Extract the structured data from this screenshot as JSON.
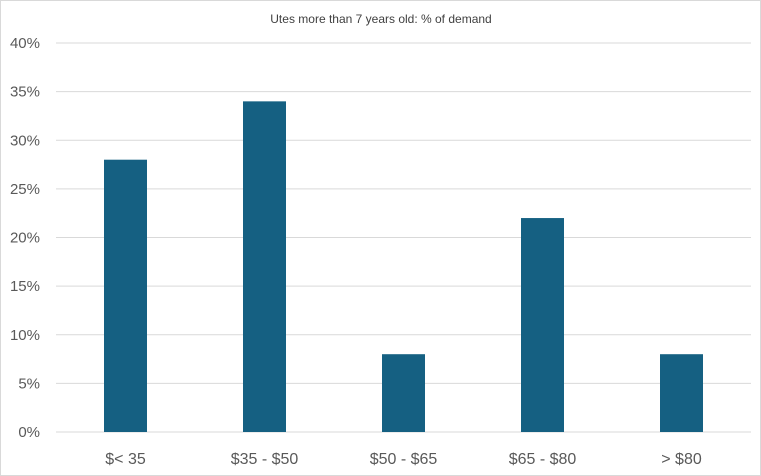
{
  "chart_data": {
    "type": "bar",
    "title": "Utes more than 7 years old: %  of demand",
    "xlabel": "",
    "ylabel": "",
    "categories": [
      "$< 35",
      "$35 - $50",
      "$50 - $65",
      "$65 - $80",
      "> $80"
    ],
    "values": [
      28,
      34,
      8,
      22,
      8
    ],
    "ylim": [
      0,
      40
    ],
    "yticks": [
      0,
      5,
      10,
      15,
      20,
      25,
      30,
      35,
      40
    ],
    "ytick_labels": [
      "0%",
      "5%",
      "10%",
      "15%",
      "20%",
      "25%",
      "30%",
      "35%",
      "40%"
    ],
    "grid": true,
    "legend": "none",
    "bar_color": "#156082",
    "grid_color": "#d9d9d9"
  }
}
